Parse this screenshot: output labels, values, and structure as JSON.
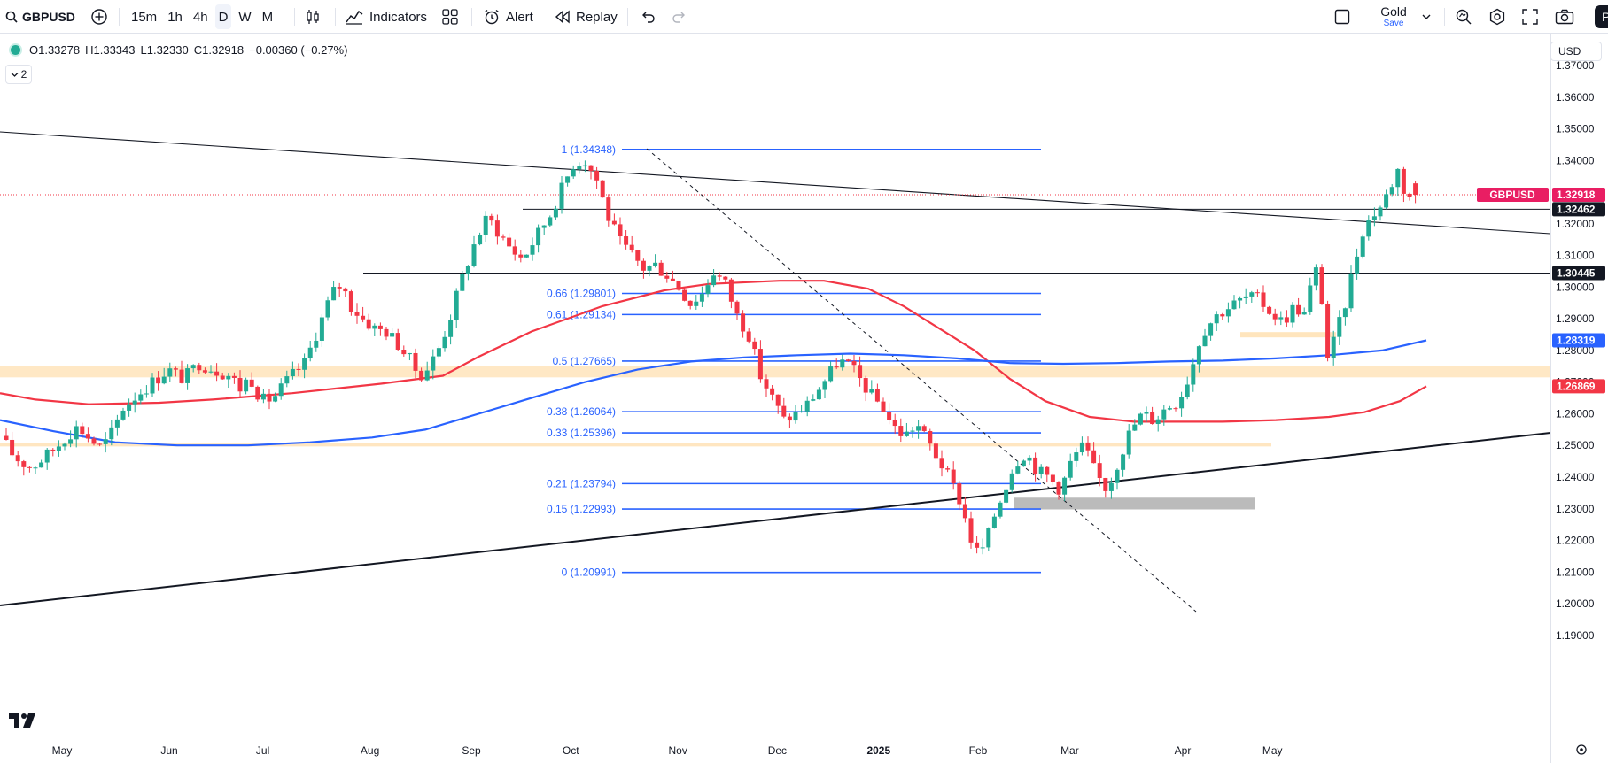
{
  "toolbar": {
    "symbol": "GBPUSD",
    "timeframes": [
      "15m",
      "1h",
      "4h",
      "D",
      "W",
      "M"
    ],
    "active_timeframe": "D",
    "indicators_label": "Indicators",
    "alert_label": "Alert",
    "replay_label": "Replay",
    "layout_name": "Gold",
    "layout_save": "Save",
    "publish_label": "Pu"
  },
  "legend": {
    "open": "O1.33278",
    "high": "H1.33343",
    "low": "L1.32330",
    "close": "C1.32918",
    "change": "−0.00360 (−0.27%)",
    "collapsed_count": "2"
  },
  "price_axis": {
    "currency": "USD",
    "ticks": [
      "1.37000",
      "1.36000",
      "1.35000",
      "1.34000",
      "1.33000",
      "1.32000",
      "1.31000",
      "1.30000",
      "1.29000",
      "1.28000",
      "1.27000",
      "1.26000",
      "1.25000",
      "1.24000",
      "1.23000",
      "1.22000",
      "1.21000",
      "1.20000",
      "1.19000"
    ]
  },
  "time_axis": {
    "ticks": [
      "May",
      "Jun",
      "Jul",
      "Aug",
      "Sep",
      "Oct",
      "Nov",
      "Dec",
      "2025",
      "Feb",
      "Mar",
      "Apr",
      "May"
    ]
  },
  "price_tags": {
    "symbol_tag": "GBPUSD",
    "last_price": "1.32918",
    "level1": "1.32462",
    "level2": "1.30445",
    "ma_blue": "1.28319",
    "ma_red": "1.26869"
  },
  "fib_levels": [
    {
      "label": "1 (1.34348)",
      "price": 1.34348
    },
    {
      "label": "0.66 (1.29801)",
      "price": 1.29801
    },
    {
      "label": "0.61 (1.29134)",
      "price": 1.29134
    },
    {
      "label": "0.5 (1.27665)",
      "price": 1.27665
    },
    {
      "label": "0.38 (1.26064)",
      "price": 1.26064
    },
    {
      "label": "0.33 (1.25396)",
      "price": 1.25396
    },
    {
      "label": "0.21 (1.23794)",
      "price": 1.23794
    },
    {
      "label": "0.15 (1.22993)",
      "price": 1.22993
    },
    {
      "label": "0 (1.20991)",
      "price": 1.20991
    }
  ],
  "colors": {
    "up": "#22ab94",
    "down": "#f23645",
    "fib": "#2962ff",
    "ma_red": "#f23645",
    "ma_blue": "#2962ff",
    "zone": "#ffe0b2",
    "last_price": "#f23645"
  },
  "chart_data": {
    "type": "candlestick",
    "symbol": "GBPUSD",
    "timeframe": "D",
    "ylim": [
      1.185,
      1.375
    ],
    "months": [
      "May",
      "Jun",
      "Jul",
      "Aug",
      "Sep",
      "Oct",
      "Nov",
      "Dec",
      "2025",
      "Feb",
      "Mar",
      "Apr",
      "May"
    ],
    "path_points": [
      [
        0,
        1.253
      ],
      [
        5,
        1.248
      ],
      [
        10,
        1.245
      ],
      [
        16,
        1.243
      ],
      [
        22,
        1.246
      ],
      [
        28,
        1.249
      ],
      [
        34,
        1.253
      ],
      [
        40,
        1.256
      ],
      [
        46,
        1.252
      ],
      [
        52,
        1.249
      ],
      [
        58,
        1.255
      ],
      [
        63,
        1.262
      ],
      [
        70,
        1.266
      ],
      [
        78,
        1.27
      ],
      [
        86,
        1.274
      ],
      [
        94,
        1.271
      ],
      [
        102,
        1.276
      ],
      [
        110,
        1.274
      ],
      [
        118,
        1.272
      ],
      [
        123,
        1.268
      ],
      [
        128,
        1.272
      ],
      [
        134,
        1.264
      ],
      [
        140,
        1.265
      ],
      [
        148,
        1.271
      ],
      [
        156,
        1.276
      ],
      [
        160,
        1.282
      ],
      [
        165,
        1.29
      ],
      [
        170,
        1.298
      ],
      [
        175,
        1.301
      ],
      [
        180,
        1.294
      ],
      [
        186,
        1.29
      ],
      [
        192,
        1.287
      ],
      [
        198,
        1.286
      ],
      [
        204,
        1.282
      ],
      [
        210,
        1.277
      ],
      [
        215,
        1.272
      ],
      [
        220,
        1.275
      ],
      [
        226,
        1.282
      ],
      [
        232,
        1.293
      ],
      [
        238,
        1.305
      ],
      [
        244,
        1.315
      ],
      [
        250,
        1.322
      ],
      [
        256,
        1.317
      ],
      [
        262,
        1.312
      ],
      [
        268,
        1.309
      ],
      [
        275,
        1.316
      ],
      [
        282,
        1.323
      ],
      [
        288,
        1.331
      ],
      [
        294,
        1.339
      ],
      [
        300,
        1.34
      ],
      [
        306,
        1.334
      ],
      [
        312,
        1.322
      ],
      [
        318,
        1.314
      ],
      [
        324,
        1.31
      ],
      [
        330,
        1.306
      ],
      [
        336,
        1.307
      ],
      [
        342,
        1.304
      ],
      [
        348,
        1.3
      ],
      [
        354,
        1.295
      ],
      [
        360,
        1.298
      ],
      [
        366,
        1.305
      ],
      [
        372,
        1.301
      ],
      [
        378,
        1.291
      ],
      [
        384,
        1.285
      ],
      [
        390,
        1.272
      ],
      [
        396,
        1.265
      ],
      [
        402,
        1.258
      ],
      [
        408,
        1.26
      ],
      [
        414,
        1.263
      ],
      [
        420,
        1.268
      ],
      [
        426,
        1.273
      ],
      [
        430,
        1.277
      ],
      [
        436,
        1.275
      ],
      [
        442,
        1.27
      ],
      [
        448,
        1.265
      ],
      [
        453,
        1.262
      ],
      [
        458,
        1.256
      ],
      [
        464,
        1.253
      ],
      [
        470,
        1.257
      ],
      [
        476,
        1.251
      ],
      [
        482,
        1.245
      ],
      [
        488,
        1.238
      ],
      [
        492,
        1.233
      ],
      [
        496,
        1.225
      ],
      [
        500,
        1.216
      ],
      [
        505,
        1.218
      ],
      [
        510,
        1.228
      ],
      [
        515,
        1.236
      ],
      [
        520,
        1.244
      ],
      [
        526,
        1.248
      ],
      [
        532,
        1.242
      ],
      [
        538,
        1.24
      ],
      [
        544,
        1.236
      ],
      [
        550,
        1.246
      ],
      [
        556,
        1.25
      ],
      [
        562,
        1.241
      ],
      [
        568,
        1.236
      ],
      [
        574,
        1.246
      ],
      [
        580,
        1.255
      ],
      [
        586,
        1.26
      ],
      [
        592,
        1.258
      ],
      [
        598,
        1.262
      ],
      [
        604,
        1.264
      ],
      [
        610,
        1.272
      ],
      [
        616,
        1.285
      ],
      [
        622,
        1.29
      ],
      [
        628,
        1.293
      ],
      [
        634,
        1.295
      ],
      [
        640,
        1.297
      ],
      [
        646,
        1.296
      ],
      [
        652,
        1.292
      ],
      [
        658,
        1.289
      ],
      [
        664,
        1.294
      ],
      [
        670,
        1.291
      ],
      [
        674,
        1.308
      ],
      [
        678,
        1.296
      ],
      [
        681,
        1.278
      ],
      [
        685,
        1.284
      ],
      [
        690,
        1.295
      ],
      [
        694,
        1.306
      ],
      [
        699,
        1.318
      ],
      [
        704,
        1.323
      ],
      [
        709,
        1.326
      ],
      [
        714,
        1.333
      ],
      [
        717,
        1.337
      ],
      [
        720,
        1.331
      ],
      [
        723,
        1.329
      ]
    ],
    "last_close": 1.32918,
    "levels": [
      1.32462,
      1.30445
    ],
    "moving_averages": [
      {
        "name": "red",
        "last": 1.26869
      },
      {
        "name": "blue",
        "last": 1.28319
      }
    ],
    "zones": [
      {
        "from": 1.2715,
        "to": 1.2752
      },
      {
        "from": 1.251,
        "to": 1.25
      },
      {
        "from": 1.2835,
        "to": 1.2848
      },
      {
        "from": 1.2298,
        "to": 1.233
      }
    ]
  }
}
